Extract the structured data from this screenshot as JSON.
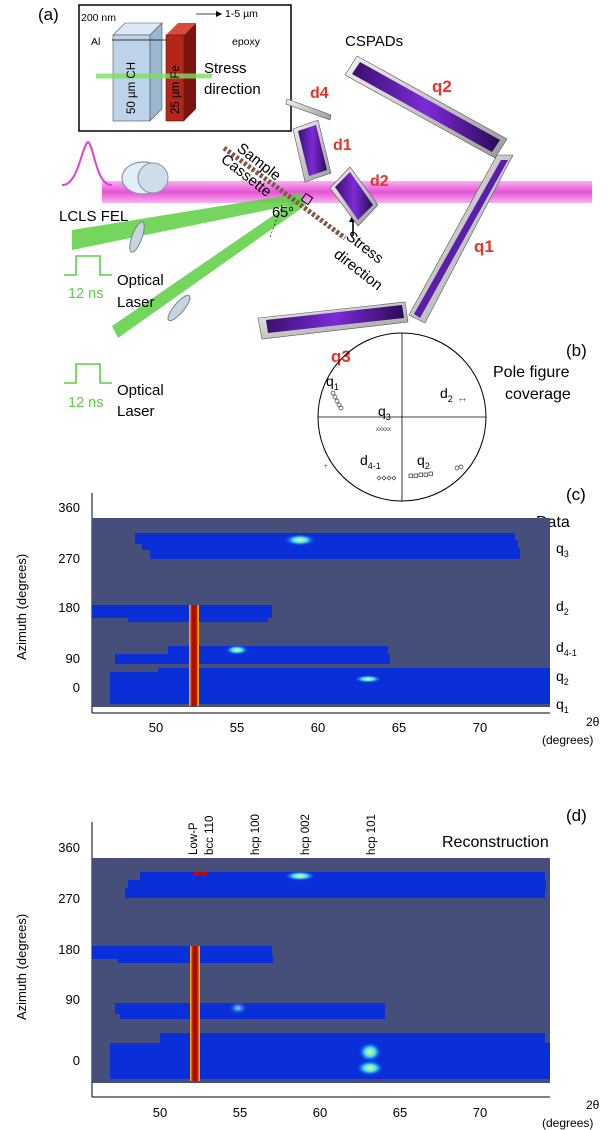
{
  "panel_a": {
    "label": "(a)",
    "inset": {
      "al_thickness": "200 nm",
      "al_name": "Al",
      "epoxy_thickness": "1-5 µm",
      "epoxy_name": "epoxy",
      "ch_label": "50 µm CH",
      "fe_label": "25 µm Fe",
      "stress_label_1": "Stress",
      "stress_label_2": "direction"
    },
    "detectors_label": "CSPADs",
    "detectors": [
      "d4",
      "d1",
      "d2",
      "q2",
      "q1",
      "q3"
    ],
    "sample_label_1": "Sample",
    "sample_label_2": "Cassette",
    "angle": "65°",
    "stress_1": "Stress",
    "stress_2": "direction",
    "fel_label": "LCLS FEL",
    "laser_1": "Optical",
    "laser_2": "Laser",
    "pulse_duration": "12 ns",
    "accent_red": "#e8322a",
    "accent_green": "#5dcf42",
    "beam_magenta": "#e43fd0"
  },
  "panel_b": {
    "label": "(b)",
    "title_1": "Pole figure",
    "title_2": "coverage",
    "q1_main": "q",
    "q1_sub": "1",
    "q3_main": "q",
    "q3_sub": "3",
    "d2_main": "d",
    "d2_sub": "2",
    "d41_main": "d",
    "d41_sub": "4-1",
    "q2_main": "q",
    "q2_sub": "2"
  },
  "panel_c": {
    "label": "(c)",
    "title": "Data",
    "ylabel": "Azimuth (degrees)",
    "xlabel_1": "2θ",
    "xlabel_2": "(degrees)",
    "yticks": [
      "360",
      "270",
      "180",
      "90",
      "0"
    ],
    "xticks": [
      "50",
      "55",
      "60",
      "65",
      "70"
    ],
    "bands": [
      {
        "main": "q",
        "sub": "3"
      },
      {
        "main": "d",
        "sub": "2"
      },
      {
        "main": "d",
        "sub": "4-1"
      },
      {
        "main": "q",
        "sub": "2"
      },
      {
        "main": "q",
        "sub": "1"
      }
    ]
  },
  "panel_d": {
    "label": "(d)",
    "title": "Reconstruction",
    "ylabel": "Azimuth (degrees)",
    "xlabel_1": "2θ",
    "xlabel_2": "(degrees)",
    "yticks": [
      "360",
      "270",
      "180",
      "90",
      "0"
    ],
    "xticks": [
      "50",
      "55",
      "60",
      "65",
      "70"
    ],
    "peak_labels": [
      "Low-P",
      "bcc 110",
      "hcp 100",
      "hcp 002",
      "hcp 101"
    ]
  },
  "colors": {
    "background": "#464f7a",
    "band": "#0a2fd8",
    "hot": "#b40a0a"
  }
}
